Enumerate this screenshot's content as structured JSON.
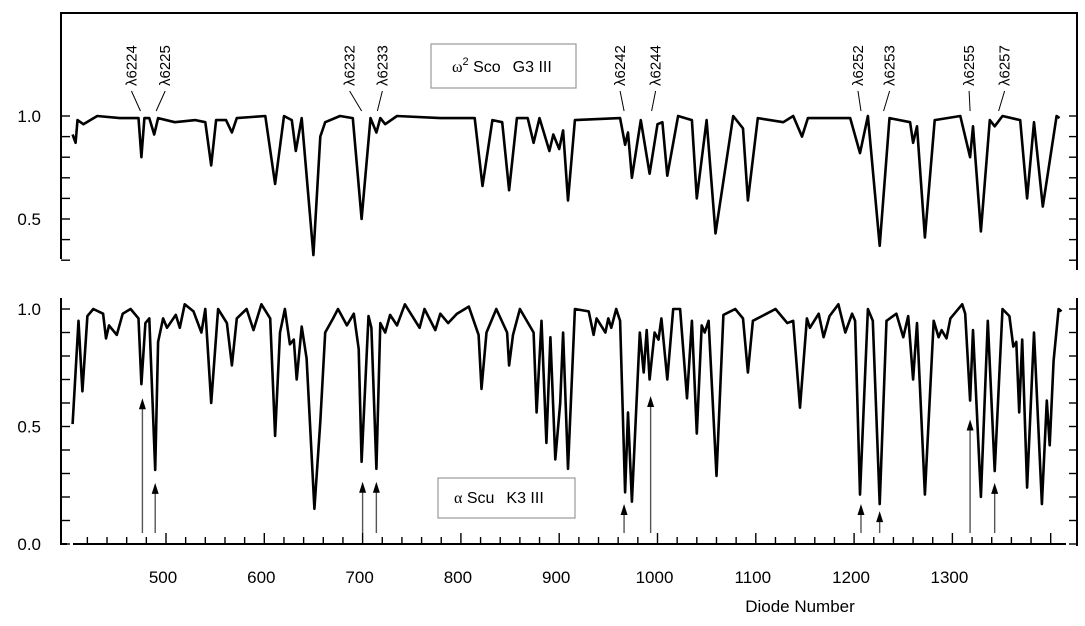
{
  "chart_data": [
    {
      "type": "line",
      "panel": "top",
      "legend": {
        "star": "ω",
        "star_sup": "2",
        "star_rest": " Sco",
        "class": "G3 III"
      },
      "xlabel": "",
      "ylabel": "",
      "xlim": [
        405,
        1411
      ],
      "ylim": [
        0.3,
        1.5
      ],
      "y_ticks": [
        0.3,
        0.4,
        0.5,
        0.6,
        0.7,
        0.8,
        0.9,
        1.0
      ],
      "y_tick_labels": [
        {
          "value": 1.0,
          "label": "1.0"
        },
        {
          "value": 0.5,
          "label": "0.5"
        }
      ],
      "line_labels": [
        {
          "label": "λ6224",
          "diode": 474
        },
        {
          "label": "λ6225",
          "diode": 490
        },
        {
          "label": "λ6232",
          "diode": 699
        },
        {
          "label": "λ6233",
          "diode": 715
        },
        {
          "label": "λ6242",
          "diode": 966
        },
        {
          "label": "λ6244",
          "diode": 994
        },
        {
          "label": "λ6252",
          "diode": 1207
        },
        {
          "label": "λ6253",
          "diode": 1230
        },
        {
          "label": "λ6255",
          "diode": 1318
        },
        {
          "label": "λ6257",
          "diode": 1347
        }
      ],
      "points": [
        [
          405,
          0.91
        ],
        [
          408,
          0.87
        ],
        [
          410,
          0.98
        ],
        [
          416,
          0.96
        ],
        [
          430,
          1.0
        ],
        [
          453,
          0.99
        ],
        [
          472,
          0.99
        ],
        [
          475,
          0.8
        ],
        [
          478,
          0.99
        ],
        [
          483,
          0.99
        ],
        [
          488,
          0.91
        ],
        [
          492,
          0.99
        ],
        [
          509,
          0.97
        ],
        [
          530,
          0.98
        ],
        [
          540,
          0.97
        ],
        [
          546,
          0.76
        ],
        [
          551,
          0.98
        ],
        [
          561,
          0.98
        ],
        [
          567,
          0.92
        ],
        [
          572,
          0.99
        ],
        [
          601,
          1.0
        ],
        [
          611,
          0.67
        ],
        [
          620,
          1.0
        ],
        [
          628,
          0.98
        ],
        [
          632,
          0.83
        ],
        [
          638,
          0.99
        ],
        [
          650,
          0.325
        ],
        [
          657,
          0.9
        ],
        [
          662,
          0.97
        ],
        [
          677,
          1.0
        ],
        [
          690,
          0.99
        ],
        [
          699,
          0.5
        ],
        [
          708,
          0.99
        ],
        [
          714,
          0.92
        ],
        [
          718,
          0.99
        ],
        [
          723,
          0.96
        ],
        [
          735,
          1.0
        ],
        [
          779,
          0.99
        ],
        [
          814,
          0.99
        ],
        [
          822,
          0.66
        ],
        [
          832,
          0.98
        ],
        [
          842,
          0.97
        ],
        [
          849,
          0.64
        ],
        [
          857,
          0.99
        ],
        [
          868,
          0.99
        ],
        [
          874,
          0.87
        ],
        [
          880,
          0.99
        ],
        [
          890,
          0.83
        ],
        [
          894,
          0.91
        ],
        [
          900,
          0.84
        ],
        [
          904,
          0.93
        ],
        [
          909,
          0.59
        ],
        [
          916,
          0.98
        ],
        [
          962,
          0.99
        ],
        [
          967,
          0.86
        ],
        [
          970,
          0.92
        ],
        [
          974,
          0.7
        ],
        [
          983,
          0.98
        ],
        [
          992,
          0.72
        ],
        [
          1000,
          0.96
        ],
        [
          1005,
          0.97
        ],
        [
          1010,
          0.71
        ],
        [
          1021,
          1.0
        ],
        [
          1035,
          0.98
        ],
        [
          1040,
          0.6
        ],
        [
          1050,
          0.98
        ],
        [
          1059,
          0.43
        ],
        [
          1077,
          1.0
        ],
        [
          1087,
          0.94
        ],
        [
          1092,
          0.59
        ],
        [
          1102,
          0.99
        ],
        [
          1128,
          0.97
        ],
        [
          1138,
          1.0
        ],
        [
          1147,
          0.9
        ],
        [
          1153,
          0.99
        ],
        [
          1196,
          0.99
        ],
        [
          1206,
          0.82
        ],
        [
          1214,
          1.0
        ],
        [
          1226,
          0.37
        ],
        [
          1236,
          0.99
        ],
        [
          1257,
          0.97
        ],
        [
          1260,
          0.87
        ],
        [
          1264,
          0.95
        ],
        [
          1272,
          0.41
        ],
        [
          1282,
          0.98
        ],
        [
          1308,
          1.0
        ],
        [
          1318,
          0.8
        ],
        [
          1321,
          0.95
        ],
        [
          1329,
          0.44
        ],
        [
          1338,
          0.98
        ],
        [
          1343,
          0.95
        ],
        [
          1351,
          1.0
        ],
        [
          1369,
          0.98
        ],
        [
          1376,
          0.6
        ],
        [
          1383,
          0.97
        ],
        [
          1392,
          0.56
        ],
        [
          1406,
          1.0
        ],
        [
          1409,
          0.99
        ]
      ]
    },
    {
      "type": "line",
      "panel": "bottom",
      "legend": {
        "star": "α",
        "star_rest": " Scu",
        "class": "K3 III"
      },
      "xlabel": "Diode Number",
      "ylabel": "",
      "xlim": [
        405,
        1411
      ],
      "ylim": [
        0.0,
        1.05
      ],
      "x_ticks_major": [
        500,
        600,
        700,
        800,
        900,
        1000,
        1100,
        1200,
        1300,
        1400
      ],
      "x_tick_labels": [
        "500",
        "600",
        "700",
        "800",
        "900",
        "1000",
        "1100",
        "1200",
        "1300"
      ],
      "y_ticks": [
        0.0,
        0.1,
        0.2,
        0.3,
        0.4,
        0.5,
        0.6,
        0.7,
        0.8,
        0.9,
        1.0
      ],
      "y_tick_labels": [
        {
          "value": 1.0,
          "label": "1.0"
        },
        {
          "value": 0.5,
          "label": "0.5"
        },
        {
          "value": 0.0,
          "label": "0.0"
        }
      ],
      "arrows": [
        {
          "diode": 476,
          "tip": 0.62
        },
        {
          "diode": 489,
          "tip": 0.26
        },
        {
          "diode": 700,
          "tip": 0.265
        },
        {
          "diode": 714,
          "tip": 0.265
        },
        {
          "diode": 966,
          "tip": 0.17
        },
        {
          "diode": 993,
          "tip": 0.63
        },
        {
          "diode": 1207,
          "tip": 0.17
        },
        {
          "diode": 1226,
          "tip": 0.14
        },
        {
          "diode": 1318,
          "tip": 0.53
        },
        {
          "diode": 1343,
          "tip": 0.26
        }
      ],
      "points": [
        [
          405,
          0.51
        ],
        [
          411,
          0.95
        ],
        [
          415,
          0.65
        ],
        [
          420,
          0.97
        ],
        [
          426,
          1.0
        ],
        [
          436,
          0.98
        ],
        [
          439,
          0.875
        ],
        [
          442,
          0.93
        ],
        [
          450,
          0.89
        ],
        [
          456,
          0.98
        ],
        [
          464,
          1.0
        ],
        [
          472,
          0.96
        ],
        [
          475,
          0.68
        ],
        [
          479,
          0.94
        ],
        [
          483,
          0.96
        ],
        [
          489,
          0.315
        ],
        [
          492,
          0.86
        ],
        [
          497,
          0.96
        ],
        [
          501,
          0.92
        ],
        [
          510,
          0.975
        ],
        [
          514,
          0.92
        ],
        [
          519,
          1.02
        ],
        [
          528,
          0.99
        ],
        [
          536,
          0.9
        ],
        [
          540,
          1.0
        ],
        [
          546,
          0.6
        ],
        [
          553,
          1.0
        ],
        [
          562,
          0.94
        ],
        [
          567,
          0.76
        ],
        [
          572,
          0.96
        ],
        [
          582,
          1.0
        ],
        [
          589,
          0.91
        ],
        [
          597,
          1.02
        ],
        [
          606,
          0.96
        ],
        [
          611,
          0.46
        ],
        [
          616,
          0.9
        ],
        [
          621,
          1.0
        ],
        [
          626,
          0.85
        ],
        [
          630,
          0.87
        ],
        [
          633,
          0.7
        ],
        [
          638,
          0.925
        ],
        [
          643,
          0.79
        ],
        [
          651,
          0.15
        ],
        [
          657,
          0.52
        ],
        [
          662,
          0.9
        ],
        [
          670,
          0.96
        ],
        [
          675,
          1.0
        ],
        [
          684,
          0.93
        ],
        [
          691,
          0.98
        ],
        [
          696,
          0.83
        ],
        [
          699,
          0.35
        ],
        [
          706,
          0.97
        ],
        [
          709,
          0.92
        ],
        [
          714,
          0.32
        ],
        [
          718,
          0.94
        ],
        [
          723,
          0.9
        ],
        [
          728,
          0.975
        ],
        [
          735,
          0.93
        ],
        [
          743,
          1.02
        ],
        [
          758,
          0.92
        ],
        [
          763,
          1.0
        ],
        [
          774,
          0.91
        ],
        [
          779,
          0.98
        ],
        [
          787,
          0.94
        ],
        [
          796,
          0.98
        ],
        [
          808,
          1.01
        ],
        [
          818,
          0.89
        ],
        [
          821,
          0.66
        ],
        [
          826,
          0.9
        ],
        [
          836,
          1.0
        ],
        [
          847,
          0.9
        ],
        [
          849,
          0.76
        ],
        [
          853,
          0.89
        ],
        [
          860,
          1.0
        ],
        [
          874,
          0.9
        ],
        [
          877,
          0.56
        ],
        [
          882,
          0.95
        ],
        [
          887,
          0.43
        ],
        [
          891,
          0.88
        ],
        [
          896,
          0.36
        ],
        [
          901,
          0.6
        ],
        [
          904,
          0.9
        ],
        [
          909,
          0.32
        ],
        [
          916,
          1.0
        ],
        [
          930,
          0.99
        ],
        [
          935,
          0.89
        ],
        [
          938,
          0.96
        ],
        [
          947,
          0.9
        ],
        [
          950,
          0.96
        ],
        [
          953,
          0.92
        ],
        [
          958,
          1.0
        ],
        [
          962,
          0.95
        ],
        [
          967,
          0.22
        ],
        [
          970,
          0.56
        ],
        [
          974,
          0.18
        ],
        [
          982,
          0.9
        ],
        [
          986,
          0.73
        ],
        [
          989,
          0.91
        ],
        [
          992,
          0.7
        ],
        [
          997,
          0.9
        ],
        [
          1001,
          0.87
        ],
        [
          1004,
          0.96
        ],
        [
          1010,
          0.7
        ],
        [
          1016,
          1.0
        ],
        [
          1023,
          1.0
        ],
        [
          1030,
          0.62
        ],
        [
          1035,
          0.95
        ],
        [
          1040,
          0.47
        ],
        [
          1045,
          0.93
        ],
        [
          1048,
          0.9
        ],
        [
          1052,
          0.95
        ],
        [
          1060,
          0.29
        ],
        [
          1067,
          0.975
        ],
        [
          1079,
          1.0
        ],
        [
          1087,
          0.96
        ],
        [
          1092,
          0.73
        ],
        [
          1097,
          0.95
        ],
        [
          1111,
          0.98
        ],
        [
          1120,
          1.0
        ],
        [
          1132,
          0.94
        ],
        [
          1138,
          0.95
        ],
        [
          1145,
          0.58
        ],
        [
          1152,
          0.96
        ],
        [
          1155,
          0.92
        ],
        [
          1164,
          0.98
        ],
        [
          1169,
          0.88
        ],
        [
          1175,
          0.97
        ],
        [
          1184,
          1.02
        ],
        [
          1191,
          0.9
        ],
        [
          1198,
          0.98
        ],
        [
          1201,
          0.95
        ],
        [
          1206,
          0.21
        ],
        [
          1214,
          1.0
        ],
        [
          1219,
          0.95
        ],
        [
          1226,
          0.17
        ],
        [
          1233,
          0.95
        ],
        [
          1243,
          0.98
        ],
        [
          1250,
          0.88
        ],
        [
          1255,
          0.97
        ],
        [
          1260,
          0.7
        ],
        [
          1264,
          0.94
        ],
        [
          1272,
          0.21
        ],
        [
          1281,
          0.95
        ],
        [
          1286,
          0.88
        ],
        [
          1289,
          0.91
        ],
        [
          1294,
          0.875
        ],
        [
          1298,
          0.96
        ],
        [
          1310,
          1.02
        ],
        [
          1313,
          0.98
        ],
        [
          1318,
          0.61
        ],
        [
          1321,
          0.91
        ],
        [
          1329,
          0.2
        ],
        [
          1336,
          0.95
        ],
        [
          1343,
          0.31
        ],
        [
          1351,
          1.0
        ],
        [
          1358,
          0.97
        ],
        [
          1362,
          0.84
        ],
        [
          1365,
          0.86
        ],
        [
          1368,
          0.56
        ],
        [
          1371,
          0.87
        ],
        [
          1376,
          0.24
        ],
        [
          1383,
          0.9
        ],
        [
          1391,
          0.17
        ],
        [
          1396,
          0.61
        ],
        [
          1399,
          0.42
        ],
        [
          1403,
          0.78
        ],
        [
          1408,
          1.0
        ],
        [
          1411,
          0.99
        ]
      ]
    }
  ]
}
